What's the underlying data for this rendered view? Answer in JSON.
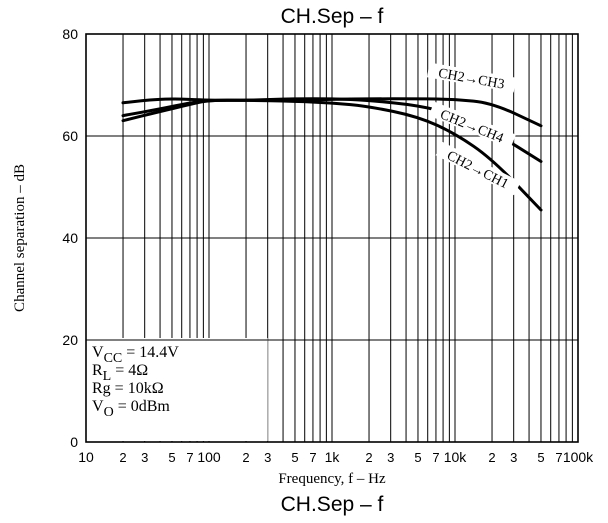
{
  "chart_data": {
    "type": "line",
    "title": "CH.Sep  –  f",
    "caption": "CH.Sep  –  f",
    "xlabel": "Frequency, f  –  Hz",
    "ylabel": "Channel separation  –  dB",
    "xscale": "log",
    "xlim": [
      10,
      100000
    ],
    "ylim": [
      0,
      80
    ],
    "grid": true,
    "x_ticks": [
      {
        "value": 10,
        "label": "10",
        "major": true
      },
      {
        "value": 20,
        "label": "2",
        "major": false
      },
      {
        "value": 30,
        "label": "3",
        "major": false
      },
      {
        "value": 50,
        "label": "5",
        "major": false
      },
      {
        "value": 70,
        "label": "7",
        "major": false
      },
      {
        "value": 100,
        "label": "100",
        "major": true
      },
      {
        "value": 200,
        "label": "2",
        "major": false
      },
      {
        "value": 300,
        "label": "3",
        "major": false
      },
      {
        "value": 500,
        "label": "5",
        "major": false
      },
      {
        "value": 700,
        "label": "7",
        "major": false
      },
      {
        "value": 1000,
        "label": "1k",
        "major": true
      },
      {
        "value": 2000,
        "label": "2",
        "major": false
      },
      {
        "value": 3000,
        "label": "3",
        "major": false
      },
      {
        "value": 5000,
        "label": "5",
        "major": false
      },
      {
        "value": 7000,
        "label": "7",
        "major": false
      },
      {
        "value": 10000,
        "label": "10k",
        "major": true
      },
      {
        "value": 20000,
        "label": "2",
        "major": false
      },
      {
        "value": 30000,
        "label": "3",
        "major": false
      },
      {
        "value": 50000,
        "label": "5",
        "major": false
      },
      {
        "value": 70000,
        "label": "7",
        "major": false
      },
      {
        "value": 100000,
        "label": "100k",
        "major": true
      }
    ],
    "x_minor_grid": [
      20,
      30,
      40,
      50,
      60,
      70,
      80,
      90,
      200,
      300,
      400,
      500,
      600,
      700,
      800,
      900,
      2000,
      3000,
      4000,
      5000,
      6000,
      7000,
      8000,
      9000,
      20000,
      30000,
      40000,
      50000,
      60000,
      70000,
      80000,
      90000
    ],
    "y_ticks": [
      {
        "value": 0,
        "label": "0"
      },
      {
        "value": 20,
        "label": "20"
      },
      {
        "value": 40,
        "label": "40"
      },
      {
        "value": 60,
        "label": "60"
      },
      {
        "value": 80,
        "label": "80"
      }
    ],
    "series": [
      {
        "name": "CH2→CH3",
        "x": [
          20,
          40,
          70,
          100,
          200,
          500,
          1000,
          2000,
          5000,
          10000,
          20000,
          50000
        ],
        "y": [
          66.5,
          67.3,
          67.2,
          67.0,
          67.0,
          67.0,
          67.2,
          67.3,
          67.3,
          67.2,
          66.5,
          62.0
        ]
      },
      {
        "name": "CH2→CH4",
        "x": [
          20,
          40,
          70,
          100,
          200,
          500,
          1000,
          2000,
          5000,
          10000,
          20000,
          50000
        ],
        "y": [
          64.0,
          65.3,
          66.5,
          67.0,
          67.0,
          67.3,
          67.3,
          67.0,
          66.0,
          64.2,
          61.0,
          55.0
        ]
      },
      {
        "name": "CH2→CH1",
        "x": [
          20,
          40,
          70,
          100,
          200,
          500,
          1000,
          2000,
          5000,
          10000,
          20000,
          50000
        ],
        "y": [
          63.0,
          64.8,
          66.2,
          67.0,
          67.0,
          66.8,
          66.5,
          65.8,
          63.8,
          60.5,
          55.5,
          45.5
        ]
      }
    ],
    "conditions": {
      "vcc": {
        "main": "V",
        "sub": "CC",
        "rest": " = 14.4V"
      },
      "rl": {
        "main": "R",
        "sub": "L",
        "rest": " = 4Ω"
      },
      "rg": {
        "text": "Rg = 10kΩ"
      },
      "vo": {
        "main": "V",
        "sub": "O",
        "rest": " = 0dBm"
      }
    }
  }
}
